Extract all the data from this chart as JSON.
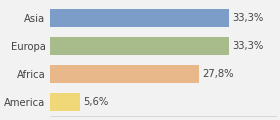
{
  "categories": [
    "America",
    "Africa",
    "Europa",
    "Asia"
  ],
  "values": [
    5.6,
    27.8,
    33.3,
    33.3
  ],
  "bar_colors": [
    "#f0d878",
    "#e8b88a",
    "#a8bb8a",
    "#7b9dc7"
  ],
  "labels": [
    "5,6%",
    "27,8%",
    "33,3%",
    "33,3%"
  ],
  "background_color": "#f2f2f2",
  "xlim": [
    0,
    42
  ],
  "bar_height": 0.62,
  "label_fontsize": 7.2,
  "tick_fontsize": 7.2
}
